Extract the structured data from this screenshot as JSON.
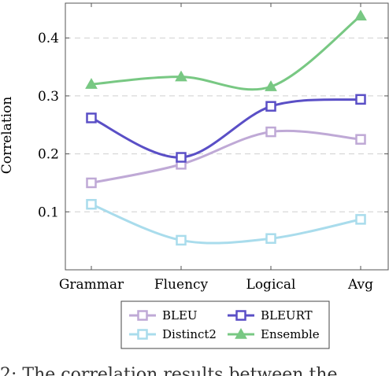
{
  "chart_data": {
    "type": "line",
    "categories": [
      "Grammar",
      "Fluency",
      "Logical",
      "Avg"
    ],
    "ylabel": "Correlation",
    "xlabel": "",
    "ylim": [
      0,
      0.46
    ],
    "yticks": [
      "0.1",
      "0.2",
      "0.3",
      "0.4"
    ],
    "grid": "horizontal-dashed",
    "legend_position": "bottom",
    "series": [
      {
        "name": "BLEU",
        "values": [
          0.15,
          0.182,
          0.238,
          0.225
        ],
        "color": "#bfa9d6",
        "marker": "square"
      },
      {
        "name": "BLEURT",
        "values": [
          0.262,
          0.194,
          0.282,
          0.294
        ],
        "color": "#5a4fc6",
        "marker": "square"
      },
      {
        "name": "Distinct2",
        "values": [
          0.113,
          0.051,
          0.054,
          0.087
        ],
        "color": "#a9dcec",
        "marker": "square"
      },
      {
        "name": "Ensemble",
        "values": [
          0.32,
          0.333,
          0.316,
          0.438
        ],
        "color": "#78c883",
        "marker": "triangle"
      }
    ]
  },
  "caption": "2: The correlation results between the"
}
